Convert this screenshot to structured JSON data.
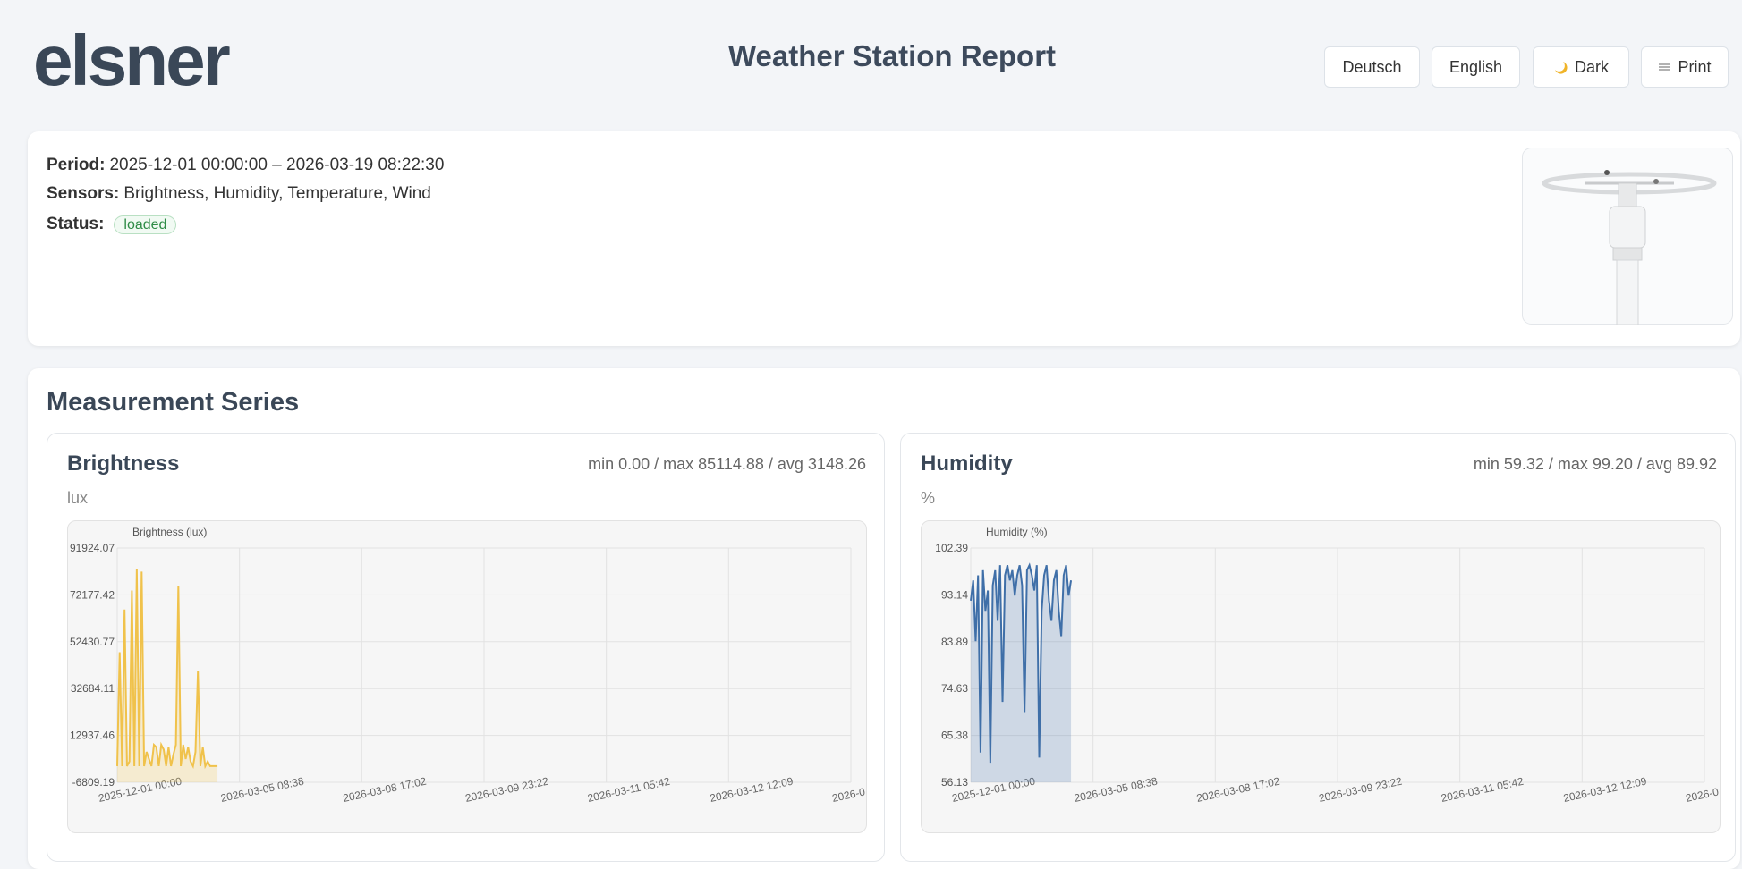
{
  "header": {
    "logo": "elsner",
    "title": "Weather Station Report",
    "buttons": [
      "Deutsch",
      "English",
      "Dark",
      "Print"
    ]
  },
  "info": {
    "rows": [
      {
        "label": "Period:",
        "value": "2025-12-01 00:00:00 – 2026-03-19 08:22:30"
      },
      {
        "label": "Sensors:",
        "value": "Brightness, Humidity, Temperature, Wind"
      },
      {
        "label": "Status:",
        "value": "loaded"
      }
    ]
  },
  "section_title": "Measurement Series",
  "chart_data": [
    {
      "type": "line",
      "title": "Brightness",
      "stats": "min 0.00 / max 85114.88 / avg 3148.26",
      "unit": "lux",
      "fill": true,
      "grid": true,
      "x": [
        0,
        2,
        4,
        6,
        8,
        10,
        12,
        14,
        16,
        18,
        20,
        22,
        24,
        26,
        28,
        30,
        32,
        34,
        36,
        38,
        40,
        42,
        44,
        46,
        48,
        50,
        52,
        54,
        56,
        58,
        60,
        62,
        64,
        66,
        68,
        70,
        72,
        74,
        76,
        78,
        80,
        82
      ],
      "series": [
        {
          "name": "Brightness (lux)",
          "color": "#f0c24b",
          "values": [
            0,
            48000,
            0,
            66000,
            0,
            2000,
            74000,
            0,
            83000,
            0,
            82000,
            0,
            6000,
            3000,
            0,
            9000,
            8000,
            0,
            9000,
            7000,
            0,
            8000,
            0,
            5000,
            9000,
            76000,
            0,
            9000,
            3000,
            8000,
            2000,
            0,
            6000,
            40000,
            0,
            8000,
            0,
            2000,
            0,
            0,
            0,
            0
          ]
        }
      ],
      "xlim": [
        0,
        600
      ],
      "xticks": [
        {
          "value": 0,
          "label": "2025-12-01 00:00"
        },
        {
          "value": 100,
          "label": "2026-03-05 08:38"
        },
        {
          "value": 200,
          "label": "2026-03-08 17:02"
        },
        {
          "value": 300,
          "label": "2026-03-09 23:22"
        },
        {
          "value": 400,
          "label": "2026-03-11 05:42"
        },
        {
          "value": 500,
          "label": "2026-03-12 12:09"
        },
        {
          "value": 600,
          "label": "2026-0"
        }
      ],
      "ylim": [
        -6809.19,
        91924.07
      ],
      "yticks": [
        -6809.19,
        12937.46,
        32684.11,
        52430.77,
        72177.42,
        91924.07
      ]
    },
    {
      "type": "line",
      "title": "Humidity",
      "stats": "min 59.32 / max 99.20 / avg 89.92",
      "unit": "%",
      "fill": true,
      "grid": true,
      "x": [
        0,
        2,
        4,
        6,
        8,
        10,
        12,
        14,
        16,
        18,
        20,
        22,
        24,
        26,
        28,
        30,
        32,
        34,
        36,
        38,
        40,
        42,
        44,
        46,
        48,
        50,
        52,
        54,
        56,
        58,
        60,
        62,
        64,
        66,
        68,
        70,
        72,
        74,
        76,
        78,
        80,
        82
      ],
      "series": [
        {
          "name": "Humidity (%)",
          "color": "#3f6fa8",
          "values": [
            92,
            96,
            84,
            97,
            62,
            98,
            90,
            94,
            60,
            95,
            98,
            88,
            99,
            72,
            97,
            99,
            96,
            98,
            93,
            97,
            99,
            95,
            70,
            98,
            99,
            97,
            94,
            99,
            61,
            90,
            97,
            99,
            92,
            88,
            96,
            98,
            90,
            85,
            97,
            99,
            93,
            96
          ]
        }
      ],
      "xlim": [
        0,
        600
      ],
      "xticks": [
        {
          "value": 0,
          "label": "2025-12-01 00:00"
        },
        {
          "value": 100,
          "label": "2026-03-05 08:38"
        },
        {
          "value": 200,
          "label": "2026-03-08 17:02"
        },
        {
          "value": 300,
          "label": "2026-03-09 23:22"
        },
        {
          "value": 400,
          "label": "2026-03-11 05:42"
        },
        {
          "value": 500,
          "label": "2026-03-12 12:09"
        },
        {
          "value": 600,
          "label": "2026-0"
        }
      ],
      "ylim": [
        56.13,
        102.39
      ],
      "yticks": [
        56.13,
        65.38,
        74.63,
        83.89,
        93.14,
        102.39
      ]
    }
  ]
}
